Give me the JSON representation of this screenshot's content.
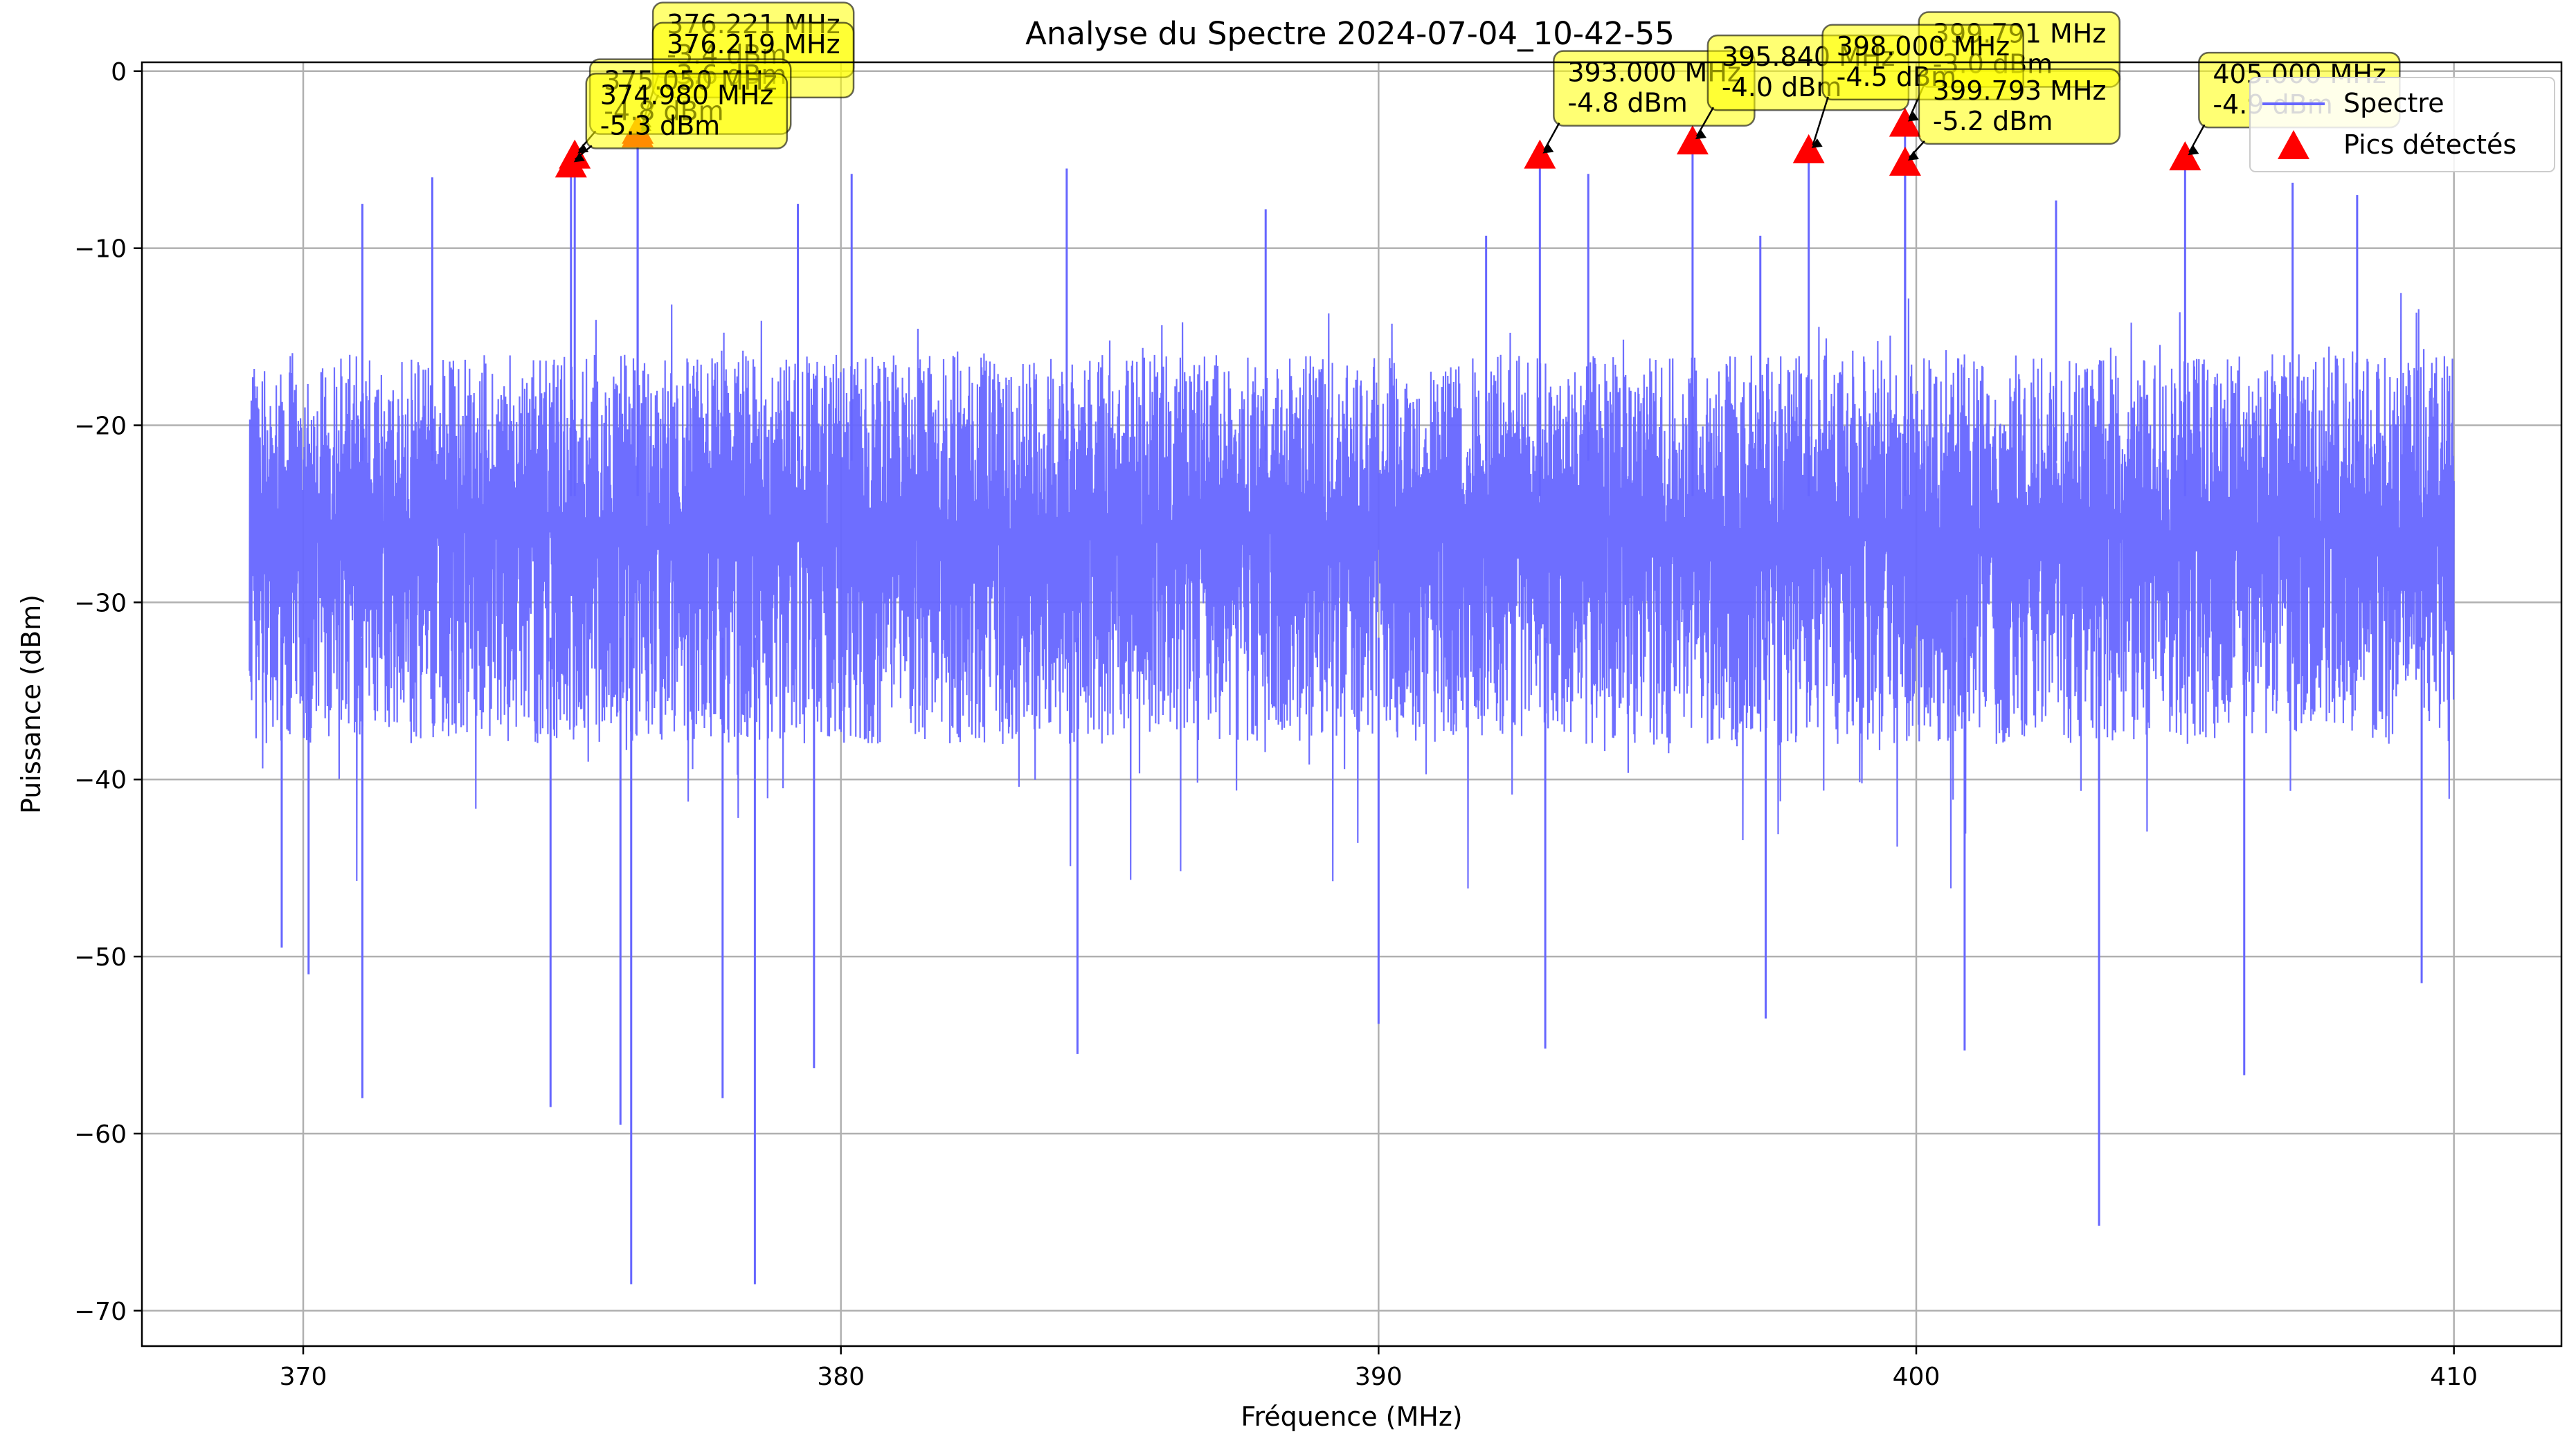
{
  "chart_data": {
    "type": "line",
    "title": "Analyse du Spectre 2024-07-04_10-42-55",
    "xlabel": "Fréquence (MHz)",
    "ylabel": "Puissance (dBm)",
    "xlim": [
      367,
      412
    ],
    "ylim": [
      -72,
      0.5
    ],
    "xticks": [
      370,
      380,
      390,
      400,
      410
    ],
    "yticks": [
      0,
      -10,
      -20,
      -30,
      -40,
      -50,
      -60,
      -70
    ],
    "grid": true,
    "legend_position": "top-right",
    "series": [
      {
        "name": "Spectre",
        "color": "#6666ff",
        "x_range": [
          369,
          410
        ],
        "typical_band": [
          -38,
          -16
        ],
        "spikes": [
          {
            "x": 371.1,
            "y": -7.5
          },
          {
            "x": 372.4,
            "y": -6
          },
          {
            "x": 379.2,
            "y": -7.5
          },
          {
            "x": 380.2,
            "y": -5.8
          },
          {
            "x": 384.2,
            "y": -5.5
          },
          {
            "x": 387.9,
            "y": -7.8
          },
          {
            "x": 392.0,
            "y": -9.3
          },
          {
            "x": 393.9,
            "y": -5.8
          },
          {
            "x": 397.1,
            "y": -9.3
          },
          {
            "x": 402.6,
            "y": -7.3
          },
          {
            "x": 407.0,
            "y": -6.3
          },
          {
            "x": 408.2,
            "y": -7.0
          }
        ],
        "dips": [
          {
            "x": 369.6,
            "y": -49.5
          },
          {
            "x": 370.1,
            "y": -51
          },
          {
            "x": 371.1,
            "y": -58
          },
          {
            "x": 374.6,
            "y": -58.5
          },
          {
            "x": 375.9,
            "y": -59.5
          },
          {
            "x": 376.1,
            "y": -68.5
          },
          {
            "x": 377.8,
            "y": -58
          },
          {
            "x": 378.4,
            "y": -68.5
          },
          {
            "x": 379.5,
            "y": -56.3
          },
          {
            "x": 384.4,
            "y": -55.5
          },
          {
            "x": 390.0,
            "y": -53.8
          },
          {
            "x": 393.1,
            "y": -55.2
          },
          {
            "x": 397.2,
            "y": -53.5
          },
          {
            "x": 400.9,
            "y": -55.3
          },
          {
            "x": 403.4,
            "y": -65.2
          },
          {
            "x": 406.1,
            "y": -56.7
          },
          {
            "x": 409.4,
            "y": -51.5
          }
        ]
      },
      {
        "name": "Pics détectés",
        "color": "#ff0000",
        "points": [
          {
            "x": 374.98,
            "y": -5.3
          },
          {
            "x": 375.05,
            "y": -4.8
          },
          {
            "x": 376.219,
            "y": -3.6
          },
          {
            "x": 376.221,
            "y": -3.4
          },
          {
            "x": 393.0,
            "y": -4.8
          },
          {
            "x": 395.84,
            "y": -4.0
          },
          {
            "x": 398.0,
            "y": -4.5
          },
          {
            "x": 399.791,
            "y": -3.0
          },
          {
            "x": 399.793,
            "y": -5.2
          },
          {
            "x": 405.0,
            "y": -4.9
          }
        ]
      }
    ],
    "annotations": [
      {
        "x": 376.221,
        "y": -3.4,
        "line1": "376.221 MHz",
        "line2": "-3.4 dBm"
      },
      {
        "x": 376.219,
        "y": -3.6,
        "line1": "376.219 MHz",
        "line2": "-3.6 dBm"
      },
      {
        "x": 375.05,
        "y": -4.8,
        "line1": "375.050 MHz",
        "line2": "-4.8 dBm"
      },
      {
        "x": 374.98,
        "y": -5.3,
        "line1": "374.980 MHz",
        "line2": "-5.3 dBm"
      },
      {
        "x": 393.0,
        "y": -4.8,
        "line1": "393.000 MHz",
        "line2": "-4.8 dBm"
      },
      {
        "x": 395.84,
        "y": -4.0,
        "line1": "395.840 MHz",
        "line2": "-4.0 dBm"
      },
      {
        "x": 399.791,
        "y": -3.0,
        "line1": "399.791 MHz",
        "line2": "-3.0 dBm"
      },
      {
        "x": 398.0,
        "y": -4.5,
        "line1": "398.000 MHz",
        "line2": "-4.5 dBm"
      },
      {
        "x": 399.793,
        "y": -5.2,
        "line1": "399.793 MHz",
        "line2": "-5.2 dBm"
      },
      {
        "x": 405.0,
        "y": -4.9,
        "line1": "405.000 MHz",
        "line2": "-4.9 dBm"
      }
    ]
  }
}
